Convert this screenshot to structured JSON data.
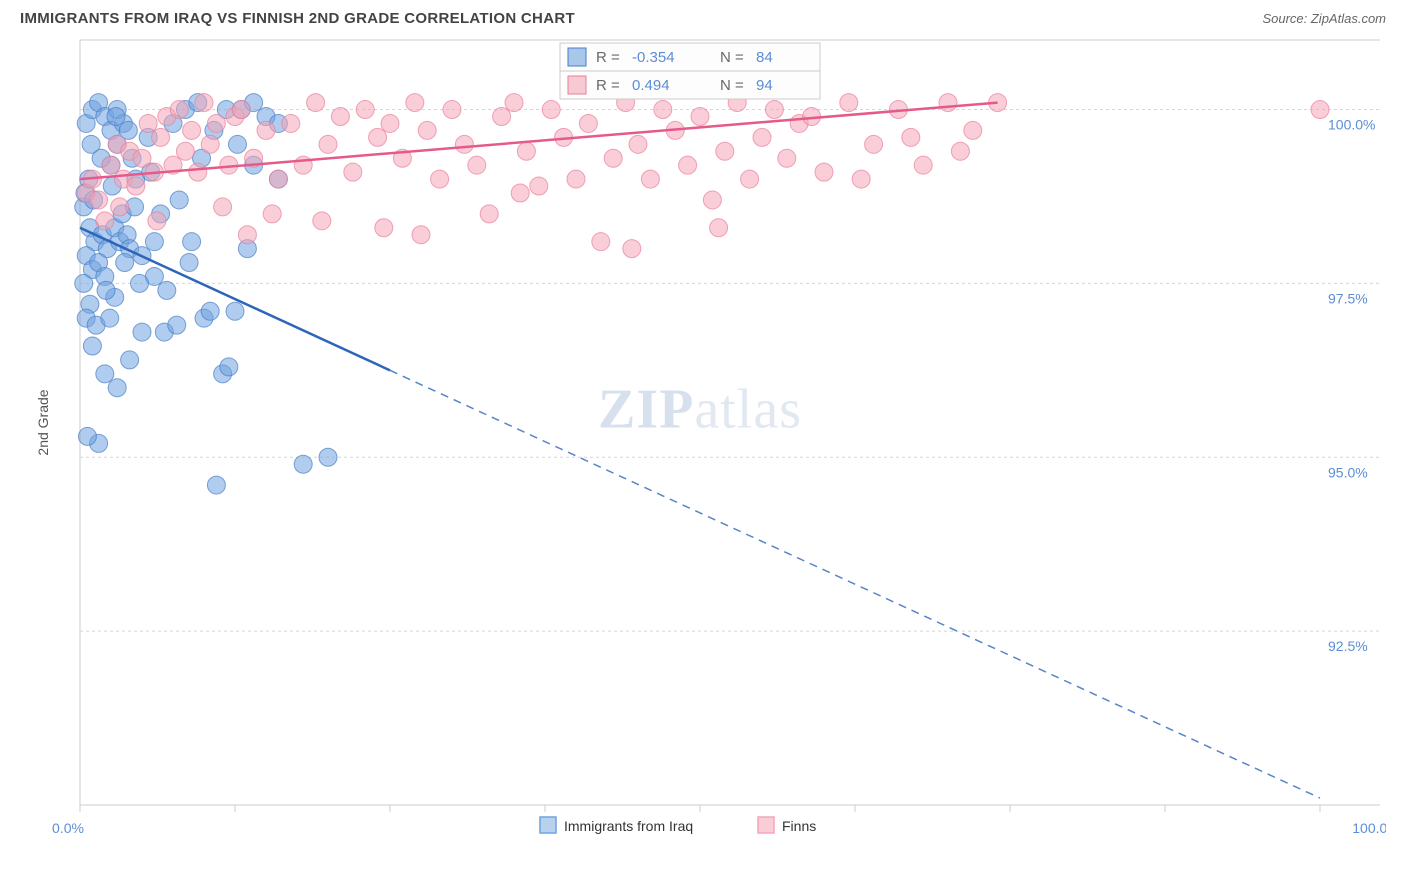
{
  "header": {
    "title": "IMMIGRANTS FROM IRAQ VS FINNISH 2ND GRADE CORRELATION CHART",
    "source": "Source: ZipAtlas.com"
  },
  "watermark": {
    "part1": "ZIP",
    "part2": "atlas"
  },
  "chart": {
    "type": "scatter",
    "ylabel": "2nd Grade",
    "xlim": [
      0,
      100
    ],
    "ylim": [
      90.0,
      101.0
    ],
    "yticks": [
      92.5,
      95.0,
      97.5,
      100.0
    ],
    "ytick_labels": [
      "92.5%",
      "95.0%",
      "97.5%",
      "100.0%"
    ],
    "xticks": [
      0,
      12.5,
      25,
      37.5,
      50,
      62.5,
      75,
      87.5,
      100
    ],
    "xtick_labels_shown": {
      "0": "0.0%",
      "100": "100.0%"
    },
    "background_color": "#ffffff",
    "grid_color": "#d5d5d5",
    "axis_color": "#cccccc",
    "marker_radius": 9,
    "marker_opacity": 0.55,
    "series": [
      {
        "name": "Immigrants from Iraq",
        "color": "#6fa3e0",
        "stroke": "#4a7fc5",
        "line_color": "#2d66b8",
        "r_value": "-0.354",
        "n_value": "84",
        "trend": {
          "x1": 0,
          "y1": 98.3,
          "x2": 100,
          "y2": 90.1,
          "solid_until_x": 25
        },
        "points": [
          [
            0.5,
            99.8
          ],
          [
            1.0,
            100.0
          ],
          [
            1.5,
            100.1
          ],
          [
            2.0,
            99.9
          ],
          [
            2.5,
            99.7
          ],
          [
            3.0,
            100.0
          ],
          [
            3.5,
            99.8
          ],
          [
            0.8,
            98.3
          ],
          [
            1.2,
            98.1
          ],
          [
            1.8,
            98.2
          ],
          [
            2.2,
            98.0
          ],
          [
            2.8,
            98.3
          ],
          [
            3.2,
            98.1
          ],
          [
            3.8,
            98.2
          ],
          [
            0.5,
            97.9
          ],
          [
            1.0,
            97.7
          ],
          [
            1.5,
            97.8
          ],
          [
            2.0,
            97.6
          ],
          [
            2.5,
            99.2
          ],
          [
            0.3,
            98.6
          ],
          [
            0.7,
            99.0
          ],
          [
            4.0,
            98.0
          ],
          [
            5.0,
            97.9
          ],
          [
            6.0,
            98.1
          ],
          [
            4.5,
            99.0
          ],
          [
            5.5,
            99.6
          ],
          [
            6.5,
            98.5
          ],
          [
            7.5,
            99.8
          ],
          [
            8.0,
            98.7
          ],
          [
            9.0,
            98.1
          ],
          [
            10.0,
            97.0
          ],
          [
            10.5,
            97.1
          ],
          [
            11.5,
            96.2
          ],
          [
            12.0,
            96.3
          ],
          [
            12.5,
            97.1
          ],
          [
            1.0,
            96.6
          ],
          [
            2.0,
            96.2
          ],
          [
            3.0,
            96.0
          ],
          [
            4.0,
            96.4
          ],
          [
            1.5,
            95.2
          ],
          [
            0.8,
            97.2
          ],
          [
            2.8,
            97.3
          ],
          [
            13.0,
            100.0
          ],
          [
            14.0,
            100.1
          ],
          [
            15.0,
            99.9
          ],
          [
            16.0,
            99.8
          ],
          [
            8.5,
            100.0
          ],
          [
            9.5,
            100.1
          ],
          [
            18.0,
            94.9
          ],
          [
            20.0,
            95.0
          ],
          [
            11.0,
            94.6
          ],
          [
            6.0,
            97.6
          ],
          [
            7.0,
            97.4
          ],
          [
            5.0,
            96.8
          ],
          [
            14.0,
            99.2
          ],
          [
            16.0,
            99.0
          ],
          [
            4.2,
            99.3
          ],
          [
            3.0,
            99.5
          ],
          [
            0.5,
            97.0
          ],
          [
            1.3,
            96.9
          ],
          [
            2.1,
            97.4
          ],
          [
            0.4,
            98.8
          ],
          [
            1.7,
            99.3
          ],
          [
            0.9,
            99.5
          ],
          [
            3.6,
            97.8
          ],
          [
            4.8,
            97.5
          ],
          [
            2.4,
            97.0
          ],
          [
            13.5,
            98.0
          ],
          [
            6.8,
            96.8
          ],
          [
            7.8,
            96.9
          ],
          [
            0.6,
            95.3
          ],
          [
            3.4,
            98.5
          ],
          [
            0.3,
            97.5
          ],
          [
            1.1,
            98.7
          ],
          [
            2.6,
            98.9
          ],
          [
            4.4,
            98.6
          ],
          [
            5.7,
            99.1
          ],
          [
            10.8,
            99.7
          ],
          [
            11.8,
            100.0
          ],
          [
            2.9,
            99.9
          ],
          [
            3.9,
            99.7
          ],
          [
            8.8,
            97.8
          ],
          [
            9.8,
            99.3
          ],
          [
            12.7,
            99.5
          ]
        ]
      },
      {
        "name": "Finns",
        "color": "#f4a6b8",
        "stroke": "#e97f9a",
        "line_color": "#e55a8a",
        "r_value": "0.494",
        "n_value": "94",
        "trend": {
          "x1": 0,
          "y1": 99.0,
          "x2": 74,
          "y2": 100.1,
          "solid_until_x": 74
        },
        "points": [
          [
            0.5,
            98.8
          ],
          [
            1.0,
            99.0
          ],
          [
            1.5,
            98.7
          ],
          [
            2.5,
            99.2
          ],
          [
            3.0,
            99.5
          ],
          [
            3.5,
            99.0
          ],
          [
            4.0,
            99.4
          ],
          [
            4.5,
            98.9
          ],
          [
            5.0,
            99.3
          ],
          [
            5.5,
            99.8
          ],
          [
            6.0,
            99.1
          ],
          [
            6.5,
            99.6
          ],
          [
            7.0,
            99.9
          ],
          [
            7.5,
            99.2
          ],
          [
            8.0,
            100.0
          ],
          [
            8.5,
            99.4
          ],
          [
            9.0,
            99.7
          ],
          [
            9.5,
            99.1
          ],
          [
            10.0,
            100.1
          ],
          [
            10.5,
            99.5
          ],
          [
            11.0,
            99.8
          ],
          [
            12.0,
            99.2
          ],
          [
            12.5,
            99.9
          ],
          [
            13.0,
            100.0
          ],
          [
            14.0,
            99.3
          ],
          [
            15.0,
            99.7
          ],
          [
            16.0,
            99.0
          ],
          [
            17.0,
            99.8
          ],
          [
            18.0,
            99.2
          ],
          [
            19.0,
            100.1
          ],
          [
            20.0,
            99.5
          ],
          [
            21.0,
            99.9
          ],
          [
            22.0,
            99.1
          ],
          [
            23.0,
            100.0
          ],
          [
            24.0,
            99.6
          ],
          [
            25.0,
            99.8
          ],
          [
            26.0,
            99.3
          ],
          [
            27.0,
            100.1
          ],
          [
            28.0,
            99.7
          ],
          [
            29.0,
            99.0
          ],
          [
            30.0,
            100.0
          ],
          [
            31.0,
            99.5
          ],
          [
            32.0,
            99.2
          ],
          [
            33.0,
            98.5
          ],
          [
            34.0,
            99.9
          ],
          [
            35.0,
            100.1
          ],
          [
            36.0,
            99.4
          ],
          [
            37.0,
            98.9
          ],
          [
            38.0,
            100.0
          ],
          [
            39.0,
            99.6
          ],
          [
            40.0,
            99.0
          ],
          [
            41.0,
            99.8
          ],
          [
            42.0,
            98.1
          ],
          [
            43.0,
            99.3
          ],
          [
            44.0,
            100.1
          ],
          [
            45.0,
            99.5
          ],
          [
            46.0,
            99.0
          ],
          [
            47.0,
            100.0
          ],
          [
            48.0,
            99.7
          ],
          [
            49.0,
            99.2
          ],
          [
            50.0,
            99.9
          ],
          [
            51.0,
            98.7
          ],
          [
            52.0,
            99.4
          ],
          [
            53.0,
            100.1
          ],
          [
            54.0,
            99.0
          ],
          [
            55.0,
            99.6
          ],
          [
            56.0,
            100.0
          ],
          [
            57.0,
            99.3
          ],
          [
            58.0,
            99.8
          ],
          [
            60.0,
            99.1
          ],
          [
            62.0,
            100.1
          ],
          [
            64.0,
            99.5
          ],
          [
            66.0,
            100.0
          ],
          [
            68.0,
            99.2
          ],
          [
            70.0,
            100.1
          ],
          [
            72.0,
            99.7
          ],
          [
            74.0,
            100.1
          ],
          [
            2.0,
            98.4
          ],
          [
            3.2,
            98.6
          ],
          [
            15.5,
            98.5
          ],
          [
            24.5,
            98.3
          ],
          [
            11.5,
            98.6
          ],
          [
            19.5,
            98.4
          ],
          [
            27.5,
            98.2
          ],
          [
            6.2,
            98.4
          ],
          [
            13.5,
            98.2
          ],
          [
            35.5,
            98.8
          ],
          [
            44.5,
            98.0
          ],
          [
            51.5,
            98.3
          ],
          [
            59.0,
            99.9
          ],
          [
            63.0,
            99.0
          ],
          [
            67.0,
            99.6
          ],
          [
            71.0,
            99.4
          ],
          [
            100.0,
            100.0
          ]
        ]
      }
    ],
    "legend": {
      "items": [
        {
          "label": "Immigrants from Iraq",
          "swatch_fill": "#b8d1ed",
          "swatch_stroke": "#6fa3e0"
        },
        {
          "label": "Finns",
          "swatch_fill": "#f9cdd8",
          "swatch_stroke": "#f4a6b8"
        }
      ]
    },
    "stats_box": {
      "border_color": "#cccccc",
      "bg_color": "#fdfdfd",
      "label_color": "#696969",
      "value_color": "#5b8dd6",
      "r_label": "R =",
      "n_label": "N ="
    }
  }
}
